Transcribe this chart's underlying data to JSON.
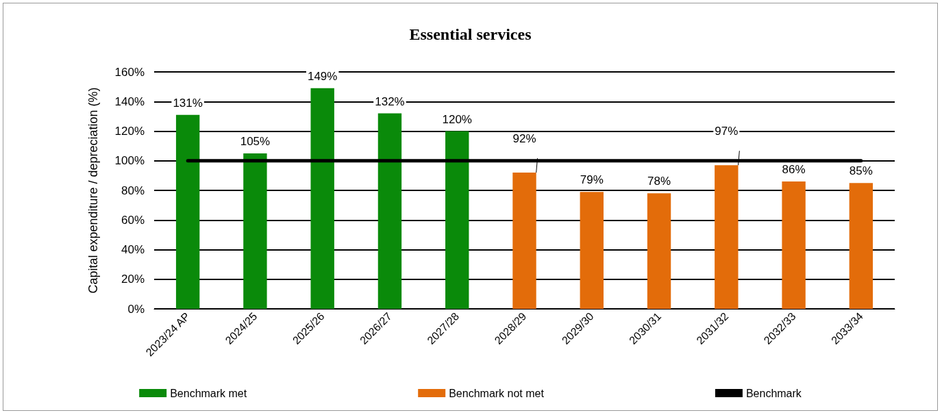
{
  "chart_data": {
    "type": "bar",
    "title": "Essential services",
    "ylabel": "Capital expenditure / depreciation (%)",
    "categories": [
      "2023/24 AP",
      "2024/25",
      "2025/26",
      "2026/27",
      "2027/28",
      "2028/29",
      "2029/30",
      "2030/31",
      "2031/32",
      "2032/33",
      "2033/34"
    ],
    "stacked": true,
    "series": [
      {
        "name": "Benchmark met",
        "color": "#0a8a0a",
        "values": [
          131,
          105,
          149,
          132,
          120,
          null,
          null,
          null,
          null,
          null,
          null
        ],
        "value_labels": [
          "131%",
          "105%",
          "149%",
          "132%",
          "120%",
          null,
          null,
          null,
          null,
          null,
          null
        ]
      },
      {
        "name": "Benchmark not met",
        "color": "#e36c0a",
        "values": [
          null,
          null,
          null,
          null,
          null,
          92,
          79,
          78,
          97,
          86,
          85
        ],
        "value_labels": [
          null,
          null,
          null,
          null,
          null,
          "92%",
          "79%",
          "78%",
          "97%",
          "86%",
          "85%"
        ]
      },
      {
        "name": "Benchmark",
        "type": "line",
        "color": "#000000",
        "marker": "none",
        "values": [
          100,
          100,
          100,
          100,
          100,
          100,
          100,
          100,
          100,
          100,
          100
        ]
      }
    ],
    "ylim": [
      0,
      160
    ],
    "yticks": [
      {
        "value": 0,
        "label": "0%"
      },
      {
        "value": 20,
        "label": "20%"
      },
      {
        "value": 40,
        "label": "40%"
      },
      {
        "value": 60,
        "label": "60%"
      },
      {
        "value": 80,
        "label": "80%"
      },
      {
        "value": 100,
        "label": "100%"
      },
      {
        "value": 120,
        "label": "120%"
      },
      {
        "value": 140,
        "label": "140%"
      },
      {
        "value": 160,
        "label": "160%"
      }
    ],
    "grid": "y",
    "legend": "bottom"
  }
}
